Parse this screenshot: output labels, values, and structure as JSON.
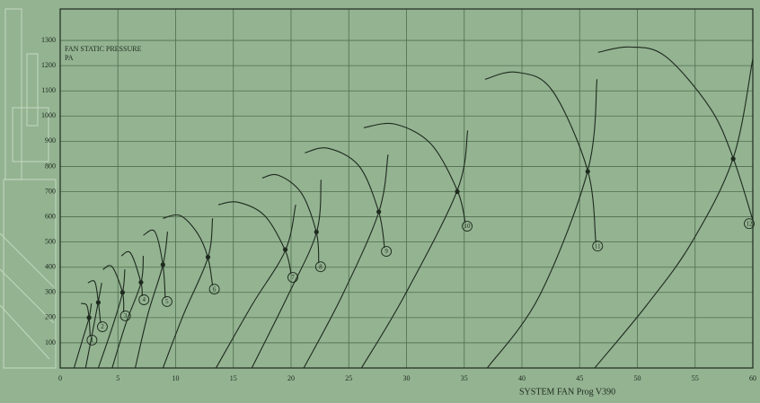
{
  "chart_data": {
    "type": "fan-curves",
    "y_label": [
      "FAN STATIC PRESSURE",
      "PA"
    ],
    "x_label": "SYSTEM FAN Prog V390",
    "xlim": [
      0,
      60
    ],
    "xticks": [
      0,
      5,
      10,
      15,
      20,
      25,
      30,
      35,
      40,
      45,
      50,
      55,
      60
    ],
    "ylim": [
      0,
      1400
    ],
    "yticks": [
      100,
      200,
      300,
      400,
      500,
      600,
      700,
      800,
      900,
      1000,
      1100,
      1200,
      1300
    ],
    "grid": true,
    "color": "#1e2a1e",
    "series": [
      {
        "name": "1",
        "point": {
          "x": 2.5,
          "y": 200
        },
        "fan_curve": {
          "x": [
            1.8,
            2.3,
            2.5,
            2.6
          ],
          "y": [
            256,
            249,
            199,
            125
          ]
        },
        "system_curve": {
          "x": [
            1.2,
            1.9,
            2.5,
            2.7
          ],
          "y": [
            0,
            107,
            199,
            256
          ]
        }
      },
      {
        "name": "2",
        "point": {
          "x": 3.3,
          "y": 260
        },
        "fan_curve": {
          "x": [
            2.4,
            3.0,
            3.3,
            3.5
          ],
          "y": [
            338,
            342,
            263,
            178
          ]
        },
        "system_curve": {
          "x": [
            2.2,
            2.8,
            3.3,
            3.6
          ],
          "y": [
            0,
            142,
            263,
            338
          ]
        }
      },
      {
        "name": "3",
        "point": {
          "x": 5.4,
          "y": 300
        },
        "fan_curve": {
          "x": [
            3.7,
            4.5,
            5.4,
            5.5
          ],
          "y": [
            391,
            402,
            299,
            221
          ]
        },
        "system_curve": {
          "x": [
            3.3,
            4.5,
            5.4,
            5.6
          ],
          "y": [
            0,
            160,
            299,
            391
          ]
        }
      },
      {
        "name": "4",
        "point": {
          "x": 7.0,
          "y": 340
        },
        "fan_curve": {
          "x": [
            5.3,
            6.1,
            7.0,
            7.1
          ],
          "y": [
            445,
            456,
            338,
            285
          ]
        },
        "system_curve": {
          "x": [
            4.5,
            5.7,
            7.0,
            7.2
          ],
          "y": [
            0,
            178,
            338,
            445
          ]
        }
      },
      {
        "name": "5",
        "point": {
          "x": 8.9,
          "y": 410
        },
        "fan_curve": {
          "x": [
            7.2,
            8.2,
            8.9,
            9.1
          ],
          "y": [
            527,
            541,
            409,
            278
          ]
        },
        "system_curve": {
          "x": [
            6.5,
            7.6,
            8.9,
            9.3
          ],
          "y": [
            0,
            214,
            409,
            541
          ]
        }
      },
      {
        "name": "6",
        "point": {
          "x": 12.8,
          "y": 440
        },
        "fan_curve": {
          "x": [
            8.9,
            10.4,
            11.9,
            12.8,
            13.2
          ],
          "y": [
            594,
            605,
            534,
            438,
            327
          ]
        },
        "system_curve": {
          "x": [
            8.9,
            10.7,
            12.8,
            13.2
          ],
          "y": [
            0,
            214,
            438,
            594
          ]
        }
      },
      {
        "name": "7",
        "point": {
          "x": 19.5,
          "y": 470
        },
        "fan_curve": {
          "x": [
            13.7,
            15.4,
            17.7,
            19.5,
            20.0
          ],
          "y": [
            648,
            658,
            605,
            466,
            374
          ]
        },
        "system_curve": {
          "x": [
            13.5,
            16.6,
            19.5,
            20.4
          ],
          "y": [
            0,
            249,
            466,
            648
          ]
        }
      },
      {
        "name": "8",
        "point": {
          "x": 22.2,
          "y": 540
        },
        "fan_curve": {
          "x": [
            17.5,
            18.9,
            20.9,
            22.2,
            22.4
          ],
          "y": [
            754,
            765,
            694,
            537,
            416
          ]
        },
        "system_curve": {
          "x": [
            16.6,
            19.7,
            22.2,
            22.6
          ],
          "y": [
            0,
            285,
            537,
            747
          ]
        }
      },
      {
        "name": "9",
        "point": {
          "x": 27.6,
          "y": 620
        },
        "fan_curve": {
          "x": [
            21.2,
            23.2,
            25.9,
            27.6,
            28.1
          ],
          "y": [
            854,
            872,
            801,
            619,
            477
          ]
        },
        "system_curve": {
          "x": [
            21.1,
            24.4,
            27.6,
            28.4
          ],
          "y": [
            0,
            285,
            619,
            847
          ]
        }
      },
      {
        "name": "10",
        "point": {
          "x": 34.4,
          "y": 700
        },
        "fan_curve": {
          "x": [
            26.3,
            29.0,
            32.1,
            34.4,
            35.1
          ],
          "y": [
            954,
            968,
            890,
            705,
            577
          ]
        },
        "system_curve": {
          "x": [
            26.1,
            29.8,
            34.4,
            35.3
          ],
          "y": [
            0,
            285,
            705,
            943
          ]
        }
      },
      {
        "name": "11",
        "point": {
          "x": 45.7,
          "y": 780
        },
        "fan_curve": {
          "x": [
            36.8,
            39.5,
            42.6,
            45.7,
            46.4
          ],
          "y": [
            1146,
            1174,
            1103,
            783,
            498
          ]
        },
        "system_curve": {
          "x": [
            37.0,
            41.5,
            45.7,
            46.5
          ],
          "y": [
            0,
            285,
            783,
            1146
          ]
        }
      },
      {
        "name": "12",
        "point": {
          "x": 58.3,
          "y": 830
        },
        "fan_curve": {
          "x": [
            46.6,
            49.3,
            52.4,
            56.3,
            58.3,
            60
          ],
          "y": [
            1253,
            1274,
            1238,
            1032,
            833,
            587
          ]
        },
        "system_curve": {
          "x": [
            46.3,
            50.8,
            54.7,
            58.3,
            60
          ],
          "y": [
            0,
            249,
            498,
            833,
            1228
          ]
        }
      }
    ]
  }
}
